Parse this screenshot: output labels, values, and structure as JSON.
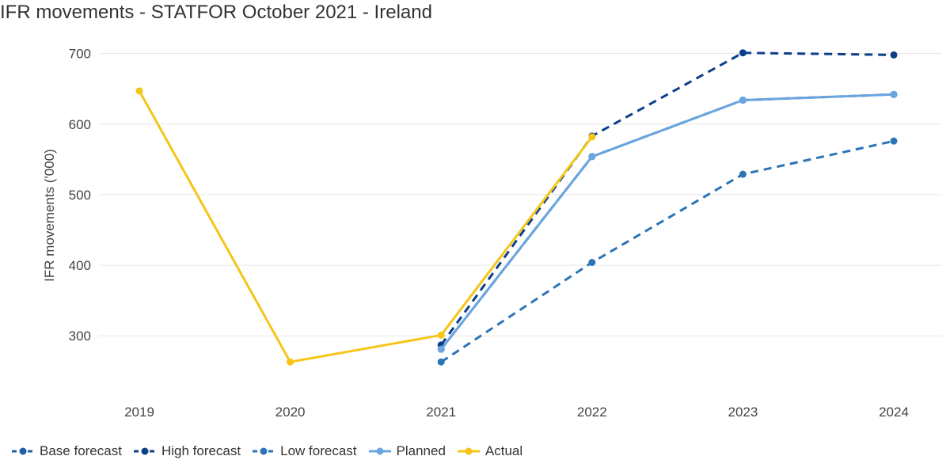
{
  "chart_data": {
    "type": "line",
    "title": "IFR movements - STATFOR October 2021 - Ireland",
    "ylabel": "IFR movements ('000)",
    "xlabel": "",
    "categories": [
      "2019",
      "2020",
      "2021",
      "2022",
      "2023",
      "2024"
    ],
    "yticks": [
      300,
      400,
      500,
      600,
      700
    ],
    "ylim": [
      215,
      722
    ],
    "grid": true,
    "legend_position": "bottom-left",
    "series": [
      {
        "name": "Base forecast",
        "color": "#1f5fa8",
        "dashed": true,
        "values": [
          null,
          null,
          281,
          554,
          634,
          642
        ]
      },
      {
        "name": "High forecast",
        "color": "#0c3f8a",
        "dashed": true,
        "values": [
          null,
          null,
          287,
          583,
          701,
          698
        ]
      },
      {
        "name": "Low forecast",
        "color": "#2c74b8",
        "dashed": true,
        "values": [
          null,
          null,
          263,
          404,
          529,
          576
        ]
      },
      {
        "name": "Planned",
        "color": "#6aa5de",
        "dashed": false,
        "values": [
          null,
          null,
          281,
          554,
          634,
          642
        ]
      },
      {
        "name": "Actual",
        "color": "#f5c518",
        "dashed": false,
        "values": [
          647,
          263,
          301,
          582,
          null,
          null
        ]
      }
    ]
  }
}
